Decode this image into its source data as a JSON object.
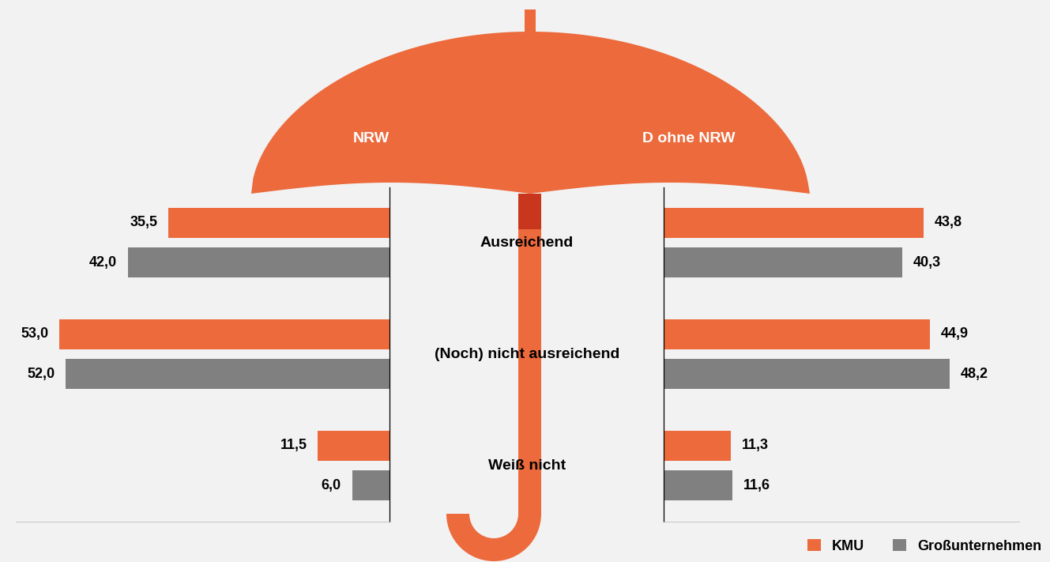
{
  "chart_data": [
    {
      "type": "bar",
      "title": "NRW",
      "orientation": "horizontal",
      "categories": [
        "Ausreichend",
        "(Noch) nicht ausreichend",
        "Weiß nicht"
      ],
      "series": [
        {
          "name": "KMU",
          "color": "#EC6A3C",
          "values": [
            35.5,
            53.0,
            11.5
          ],
          "value_labels": [
            "35,5",
            "53,0",
            "11,5"
          ]
        },
        {
          "name": "Großunternehmen",
          "color": "#808080",
          "values": [
            42.0,
            52.0,
            6.0
          ],
          "value_labels": [
            "42,0",
            "52,0",
            "6,0"
          ]
        }
      ],
      "xlim": [
        0,
        60
      ],
      "xticks": [],
      "tick_labels": false,
      "data_labels": true,
      "legend": "lower right"
    },
    {
      "type": "bar",
      "title": "D ohne NRW",
      "orientation": "horizontal",
      "categories": [
        "Ausreichend",
        "(Noch) nicht ausreichend",
        "Weiß nicht"
      ],
      "series": [
        {
          "name": "KMU",
          "color": "#EC6A3C",
          "values": [
            43.8,
            44.9,
            11.3
          ],
          "value_labels": [
            "43,8",
            "44,9",
            "11,3"
          ]
        },
        {
          "name": "Großunternehmen",
          "color": "#808080",
          "values": [
            40.3,
            48.2,
            11.6
          ],
          "value_labels": [
            "40,3",
            "48,2",
            "11,6"
          ]
        }
      ],
      "xlim": [
        0,
        60
      ],
      "xticks": [],
      "tick_labels": false,
      "data_labels": true
    }
  ]
}
